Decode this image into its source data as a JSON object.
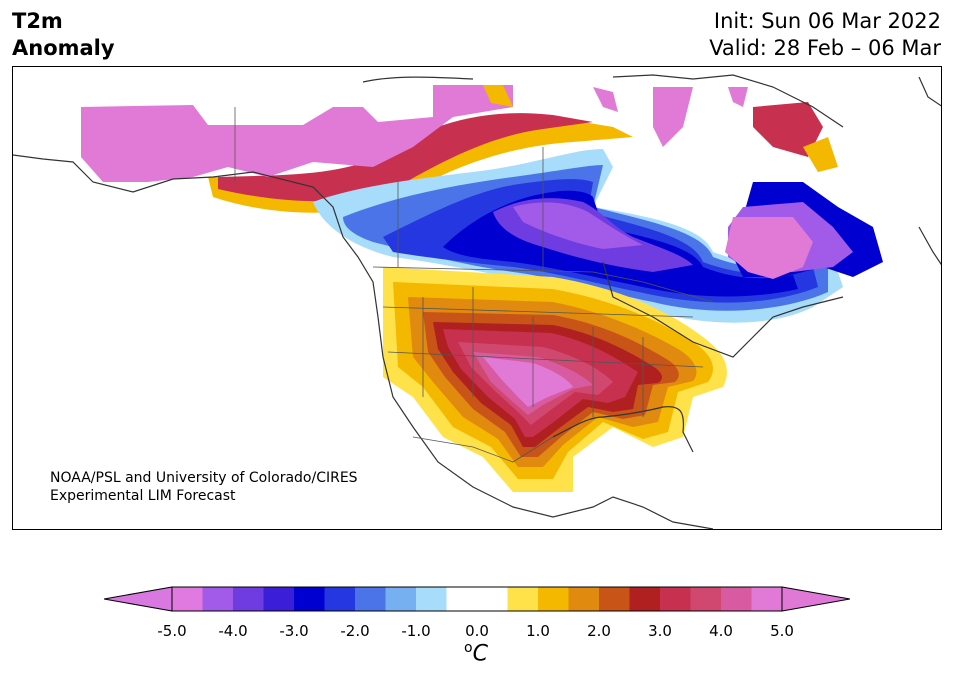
{
  "header": {
    "variable": "T2m\nAnomaly",
    "init": "Init: Sun 06 Mar 2022",
    "valid": "Valid: 28 Feb – 06 Mar"
  },
  "map": {
    "credit": "NOAA/PSL and University of Colorado/CIRES\nExperimental LIM Forecast"
  },
  "colorbar": {
    "ticks": [
      "-5.0",
      "-4.0",
      "-3.0",
      "-2.0",
      "-1.0",
      "0.0",
      "1.0",
      "2.0",
      "3.0",
      "4.0",
      "5.0"
    ],
    "unit_sup": "o",
    "unit": "C",
    "colors": [
      "#e07ae0",
      "#a25ae8",
      "#6e3ce0",
      "#3a1ed8",
      "#0000d0",
      "#2437e0",
      "#4a74e8",
      "#76b0f0",
      "#a8dcfb",
      "#ffffff",
      "#ffffff",
      "#ffe24a",
      "#f4b800",
      "#e08a10",
      "#c85418",
      "#b02020",
      "#c83050",
      "#d04870",
      "#d85aa0",
      "#e07ad6"
    ],
    "under_color": "#d878e0",
    "over_color": "#e078d8"
  },
  "palette": {
    "strong_warm": "#e07ad6",
    "warm": "#c83050",
    "mild_warm": "#f4b800",
    "strong_cold": "#0000d0",
    "cold": "#6e3ce0",
    "mild_cold": "#a8dcfb"
  }
}
